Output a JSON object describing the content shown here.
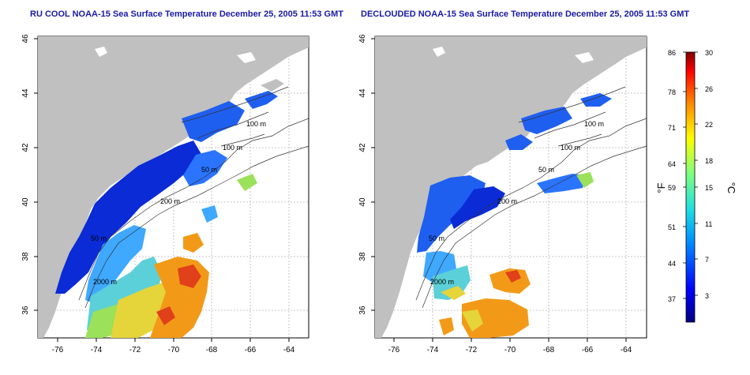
{
  "titles": {
    "left": "RU COOL NOAA-15 Sea Surface Temperature December 25, 2005 11:53 GMT",
    "right": "DECLOUDED NOAA-15 Sea Surface Temperature December 25, 2005 11:53 GMT"
  },
  "axes": {
    "lat_ticks": [
      "36",
      "38",
      "40",
      "42",
      "44",
      "46"
    ],
    "lon_ticks": [
      "-76",
      "-74",
      "-72",
      "-70",
      "-68",
      "-66",
      "-64"
    ]
  },
  "contour_labels": [
    "100 m",
    "100 m",
    "50 m",
    "200 m",
    "50 m",
    "2000 m"
  ],
  "colorbar": {
    "f_unit": "°F",
    "c_unit": "°C",
    "f_ticks": [
      "86",
      "78",
      "71",
      "64",
      "59",
      "51",
      "44",
      "37"
    ],
    "c_ticks": [
      "30",
      "26",
      "22",
      "18",
      "15",
      "11",
      "7",
      "3"
    ]
  },
  "colors": {
    "land": "#c0c0c0",
    "ocean_nodata": "#ffffff",
    "cold": "#0a2bd6",
    "cool": "#3fa8ff",
    "mid": "#9be15a",
    "warm": "#f29a18",
    "hot": "#e0401a",
    "title": "#1a1aa6"
  }
}
